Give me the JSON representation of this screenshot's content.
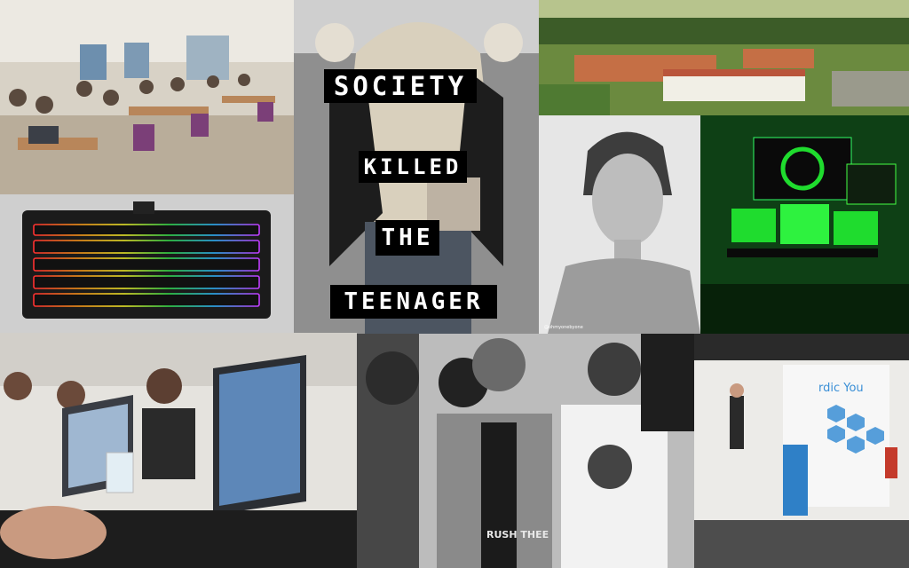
{
  "overlay_words": [
    "SOCIETY",
    "KILLED",
    "THE",
    "TEENAGER"
  ],
  "booth_sign": "rdic You",
  "shirt_text": "RUSH THEE",
  "watermark": "@ohmyonebyone",
  "colors": {
    "overlay_bg": "#000000",
    "overlay_text": "#ffffff",
    "setup_green": "#1fdc2e",
    "booth_blue": "#3a8fd6"
  }
}
